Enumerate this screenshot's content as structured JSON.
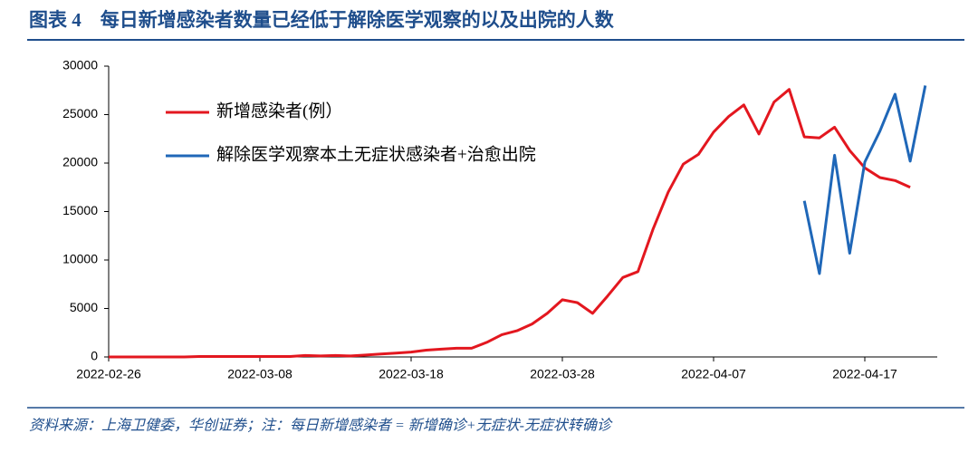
{
  "chart_data": {
    "type": "line",
    "title": "图表 4　每日新增感染者数量已经低于解除医学观察的以及出院的人数",
    "note": "资料来源：上海卫健委，华创证券；注：每日新增感染者 = 新增确诊+无症状-无症状转确诊",
    "x": [
      "2022-02-26",
      "2022-02-27",
      "2022-02-28",
      "2022-03-01",
      "2022-03-02",
      "2022-03-03",
      "2022-03-04",
      "2022-03-05",
      "2022-03-06",
      "2022-03-07",
      "2022-03-08",
      "2022-03-09",
      "2022-03-10",
      "2022-03-11",
      "2022-03-12",
      "2022-03-13",
      "2022-03-14",
      "2022-03-15",
      "2022-03-16",
      "2022-03-17",
      "2022-03-18",
      "2022-03-19",
      "2022-03-20",
      "2022-03-21",
      "2022-03-22",
      "2022-03-23",
      "2022-03-24",
      "2022-03-25",
      "2022-03-26",
      "2022-03-27",
      "2022-03-28",
      "2022-03-29",
      "2022-03-30",
      "2022-03-31",
      "2022-04-01",
      "2022-04-02",
      "2022-04-03",
      "2022-04-04",
      "2022-04-05",
      "2022-04-06",
      "2022-04-07",
      "2022-04-08",
      "2022-04-09",
      "2022-04-10",
      "2022-04-11",
      "2022-04-12",
      "2022-04-13",
      "2022-04-14",
      "2022-04-15",
      "2022-04-16",
      "2022-04-17",
      "2022-04-18",
      "2022-04-19",
      "2022-04-20",
      "2022-04-21"
    ],
    "xticks": [
      "2022-02-26",
      "2022-03-08",
      "2022-03-18",
      "2022-03-28",
      "2022-04-07",
      "2022-04-17"
    ],
    "ylim": [
      0,
      30000
    ],
    "yticks": [
      0,
      5000,
      10000,
      15000,
      20000,
      25000,
      30000
    ],
    "legend": "upper left",
    "series": [
      {
        "name": "新增感染者(例）",
        "color": "#e3171f",
        "values": [
          0,
          0,
          0,
          0,
          0,
          0,
          50,
          50,
          50,
          50,
          50,
          50,
          50,
          150,
          100,
          150,
          100,
          200,
          300,
          400,
          500,
          700,
          800,
          900,
          900,
          1500,
          2300,
          2700,
          3400,
          4500,
          5900,
          5600,
          4500,
          6300,
          8200,
          8800,
          13200,
          17000,
          19900,
          20900,
          23200,
          24800,
          26000,
          23000,
          26300,
          27600,
          22700,
          22600,
          23700,
          21300,
          19500,
          18500,
          18200,
          17500,
          null
        ]
      },
      {
        "name": "解除医学观察本土无症状感染者+治愈出院",
        "color": "#1f67b8",
        "values": [
          null,
          null,
          null,
          null,
          null,
          null,
          null,
          null,
          null,
          null,
          null,
          null,
          null,
          null,
          null,
          null,
          null,
          null,
          null,
          null,
          null,
          null,
          null,
          null,
          null,
          null,
          null,
          null,
          null,
          null,
          null,
          null,
          null,
          null,
          null,
          null,
          null,
          null,
          null,
          null,
          null,
          null,
          null,
          null,
          null,
          null,
          16100,
          8600,
          20800,
          10700,
          20100,
          23300,
          27100,
          20200,
          28000
        ]
      }
    ]
  }
}
